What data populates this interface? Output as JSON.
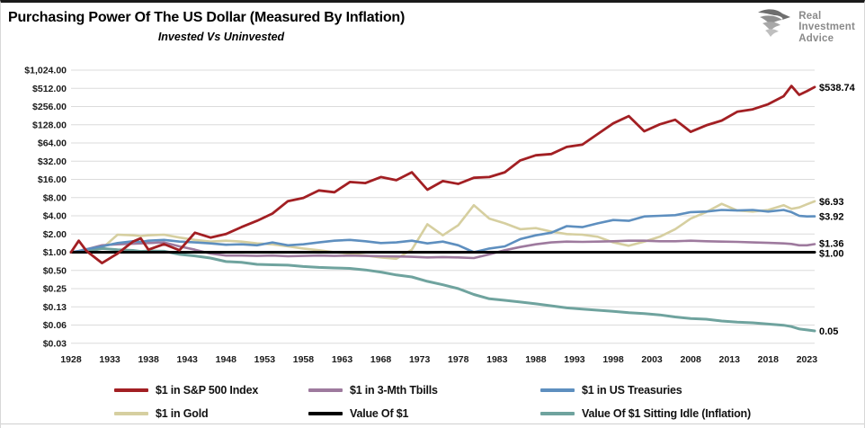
{
  "header": {
    "title": "Purchasing Power Of The US Dollar (Measured By Inflation)",
    "subtitle": "Invested Vs Uninvested"
  },
  "logo": {
    "lines": [
      "Real",
      "Investment",
      "Advice"
    ]
  },
  "legend": {
    "items": [
      {
        "id": "sp500",
        "label": "$1 in S&P 500 Index",
        "color": "#A21F23"
      },
      {
        "id": "tbills",
        "label": "$1 in 3-Mth Tbills",
        "color": "#9E7A9E"
      },
      {
        "id": "treasuries",
        "label": "$1 in US Treasuries",
        "color": "#5E8FBF"
      },
      {
        "id": "gold",
        "label": "$1 in Gold",
        "color": "#D6CFA0"
      },
      {
        "id": "value1",
        "label": "Value Of $1",
        "color": "#000000"
      },
      {
        "id": "inflation",
        "label": "Value Of $1 Sitting Idle (Inflation)",
        "color": "#6FA39E"
      }
    ]
  },
  "chart_data": {
    "type": "line",
    "title": "Purchasing Power Of The US Dollar (Measured By Inflation)",
    "subtitle": "Invested Vs Uninvested",
    "y_scale": "log2",
    "ylim": [
      0.03125,
      1024
    ],
    "grid": "horizontal",
    "legend_position": "bottom",
    "x_ticks": [
      1928,
      1933,
      1938,
      1943,
      1948,
      1953,
      1958,
      1963,
      1968,
      1973,
      1978,
      1983,
      1988,
      1993,
      1998,
      2003,
      2008,
      2013,
      2018,
      2023
    ],
    "y_ticks": [
      {
        "label": "$1,024.00",
        "value": 1024
      },
      {
        "label": "$512.00",
        "value": 512
      },
      {
        "label": "$256.00",
        "value": 256
      },
      {
        "label": "$128.00",
        "value": 128
      },
      {
        "label": "$64.00",
        "value": 64
      },
      {
        "label": "$32.00",
        "value": 32
      },
      {
        "label": "$16.00",
        "value": 16
      },
      {
        "label": "$8.00",
        "value": 8
      },
      {
        "label": "$4.00",
        "value": 4
      },
      {
        "label": "$2.00",
        "value": 2
      },
      {
        "label": "$1.00",
        "value": 1
      },
      {
        "label": "$0.50",
        "value": 0.5
      },
      {
        "label": "$0.25",
        "value": 0.25
      },
      {
        "label": "$0.13",
        "value": 0.125
      },
      {
        "label": "$0.06",
        "value": 0.0625
      },
      {
        "label": "$0.03",
        "value": 0.03125
      }
    ],
    "years": [
      1928,
      1929,
      1930,
      1932,
      1934,
      1936,
      1937,
      1938,
      1940,
      1942,
      1944,
      1946,
      1948,
      1950,
      1952,
      1954,
      1956,
      1958,
      1960,
      1962,
      1964,
      1966,
      1968,
      1970,
      1972,
      1974,
      1976,
      1978,
      1980,
      1982,
      1984,
      1986,
      1988,
      1990,
      1992,
      1994,
      1996,
      1998,
      2000,
      2002,
      2004,
      2006,
      2008,
      2010,
      2012,
      2014,
      2016,
      2018,
      2020,
      2021,
      2022,
      2023,
      2024
    ],
    "series": [
      {
        "id": "gold",
        "name": "$1 in Gold",
        "color": "#D6CFA0",
        "width": 2.6,
        "values": [
          1.0,
          1.0,
          1.02,
          1.15,
          1.95,
          1.9,
          1.85,
          1.9,
          1.95,
          1.75,
          1.6,
          1.5,
          1.55,
          1.5,
          1.4,
          1.35,
          1.25,
          1.15,
          1.08,
          1.0,
          0.95,
          0.88,
          0.82,
          0.78,
          1.1,
          2.9,
          1.9,
          2.8,
          6.0,
          3.6,
          3.0,
          2.4,
          2.5,
          2.2,
          2.0,
          1.95,
          1.8,
          1.45,
          1.28,
          1.5,
          1.8,
          2.4,
          3.6,
          4.6,
          6.3,
          4.9,
          4.7,
          5.0,
          6.0,
          5.2,
          5.5,
          6.2,
          6.93
        ]
      },
      {
        "id": "inflation",
        "name": "Value Of $1 Sitting Idle (Inflation)",
        "color": "#6FA39E",
        "width": 3,
        "values": [
          1.0,
          1.0,
          1.03,
          1.15,
          1.1,
          1.07,
          1.03,
          1.05,
          1.04,
          0.92,
          0.87,
          0.8,
          0.7,
          0.68,
          0.63,
          0.62,
          0.61,
          0.58,
          0.56,
          0.55,
          0.54,
          0.51,
          0.47,
          0.42,
          0.39,
          0.33,
          0.29,
          0.25,
          0.2,
          0.17,
          0.16,
          0.15,
          0.14,
          0.13,
          0.12,
          0.115,
          0.11,
          0.105,
          0.1,
          0.097,
          0.092,
          0.085,
          0.08,
          0.078,
          0.073,
          0.07,
          0.068,
          0.065,
          0.062,
          0.059,
          0.054,
          0.052,
          0.05
        ]
      },
      {
        "id": "tbills",
        "name": "$1 in 3-Mth Tbills",
        "color": "#9E7A9E",
        "width": 2.6,
        "values": [
          1.0,
          1.05,
          1.12,
          1.3,
          1.35,
          1.38,
          1.4,
          1.42,
          1.45,
          1.25,
          1.1,
          0.95,
          0.88,
          0.88,
          0.87,
          0.88,
          0.86,
          0.87,
          0.88,
          0.87,
          0.88,
          0.87,
          0.86,
          0.85,
          0.84,
          0.82,
          0.83,
          0.82,
          0.8,
          0.92,
          1.08,
          1.22,
          1.35,
          1.45,
          1.5,
          1.48,
          1.5,
          1.52,
          1.55,
          1.55,
          1.52,
          1.52,
          1.55,
          1.52,
          1.5,
          1.48,
          1.45,
          1.43,
          1.4,
          1.37,
          1.3,
          1.3,
          1.36
        ]
      },
      {
        "id": "treasuries",
        "name": "$1 in US Treasuries",
        "color": "#5E8FBF",
        "width": 2.6,
        "values": [
          1.0,
          1.05,
          1.12,
          1.25,
          1.42,
          1.52,
          1.48,
          1.55,
          1.6,
          1.5,
          1.45,
          1.4,
          1.33,
          1.35,
          1.3,
          1.45,
          1.3,
          1.35,
          1.45,
          1.55,
          1.6,
          1.52,
          1.42,
          1.45,
          1.55,
          1.4,
          1.5,
          1.3,
          1.0,
          1.15,
          1.25,
          1.65,
          1.9,
          2.1,
          2.7,
          2.6,
          3.0,
          3.4,
          3.3,
          3.9,
          4.0,
          4.1,
          4.6,
          4.7,
          5.0,
          4.9,
          5.0,
          4.7,
          5.0,
          4.6,
          4.0,
          3.9,
          3.92
        ]
      },
      {
        "id": "value1",
        "name": "Value Of $1",
        "color": "#000000",
        "width": 3,
        "constant": 1.0
      },
      {
        "id": "sp500",
        "name": "$1 in S&P 500 Index",
        "color": "#A21F23",
        "width": 2.8,
        "values": [
          1.0,
          1.55,
          1.05,
          0.66,
          0.95,
          1.5,
          1.7,
          1.1,
          1.36,
          1.08,
          2.1,
          1.75,
          2.0,
          2.6,
          3.3,
          4.35,
          7.0,
          7.9,
          10.5,
          9.8,
          14.5,
          13.9,
          17.5,
          15.5,
          21.0,
          10.8,
          15.0,
          13.5,
          17.0,
          17.5,
          21.0,
          33.0,
          40.0,
          42.0,
          55.0,
          60.0,
          90.0,
          135.0,
          178.0,
          100.0,
          130.0,
          155.0,
          98.0,
          125.0,
          150.0,
          210.0,
          230.0,
          280.0,
          380.0,
          560.0,
          400.0,
          460.0,
          538.74
        ]
      }
    ],
    "end_labels": [
      {
        "text": "$538.74",
        "value": 538.74
      },
      {
        "text": "$6.93",
        "value": 6.93
      },
      {
        "text": "$3.92",
        "value": 3.92
      },
      {
        "text": "$1.36",
        "value": 1.36
      },
      {
        "text": "$1.00",
        "value": 1.0
      },
      {
        "text": "0.05",
        "value": 0.05
      }
    ],
    "colors": {
      "grid": "#DBDBDB",
      "axis_text": "#1a1a1a",
      "end_label_text": "#000000"
    }
  }
}
